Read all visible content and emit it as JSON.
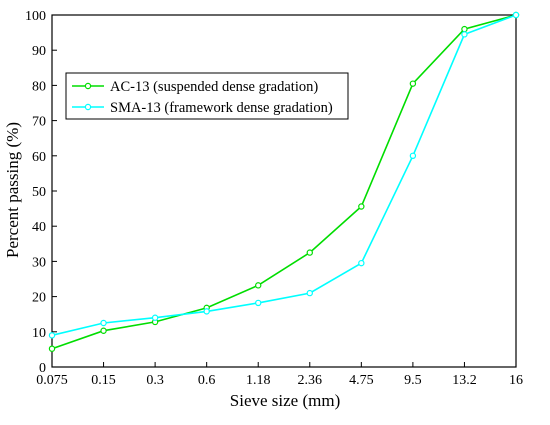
{
  "chart_data": {
    "type": "line",
    "xlabel": "Sieve size (mm)",
    "ylabel": "Percent passing (%)",
    "categories": [
      "0.075",
      "0.15",
      "0.3",
      "0.6",
      "1.18",
      "2.36",
      "4.75",
      "9.5",
      "13.2",
      "16"
    ],
    "ylim": [
      0,
      100
    ],
    "yticks": [
      0,
      10,
      20,
      30,
      40,
      50,
      60,
      70,
      80,
      90,
      100
    ],
    "grid": false,
    "legend_position": "top-left",
    "series": [
      {
        "name": "AC-13 (suspended dense gradation)",
        "color": "#00dd00",
        "values": [
          5.2,
          10.3,
          12.8,
          16.8,
          23.2,
          32.5,
          45.6,
          80.5,
          96.0,
          100
        ]
      },
      {
        "name": "SMA-13 (framework dense gradation)",
        "color": "#00ffff",
        "values": [
          9.0,
          12.5,
          14.0,
          15.8,
          18.2,
          21.0,
          29.5,
          60.0,
          94.5,
          100
        ]
      }
    ]
  }
}
